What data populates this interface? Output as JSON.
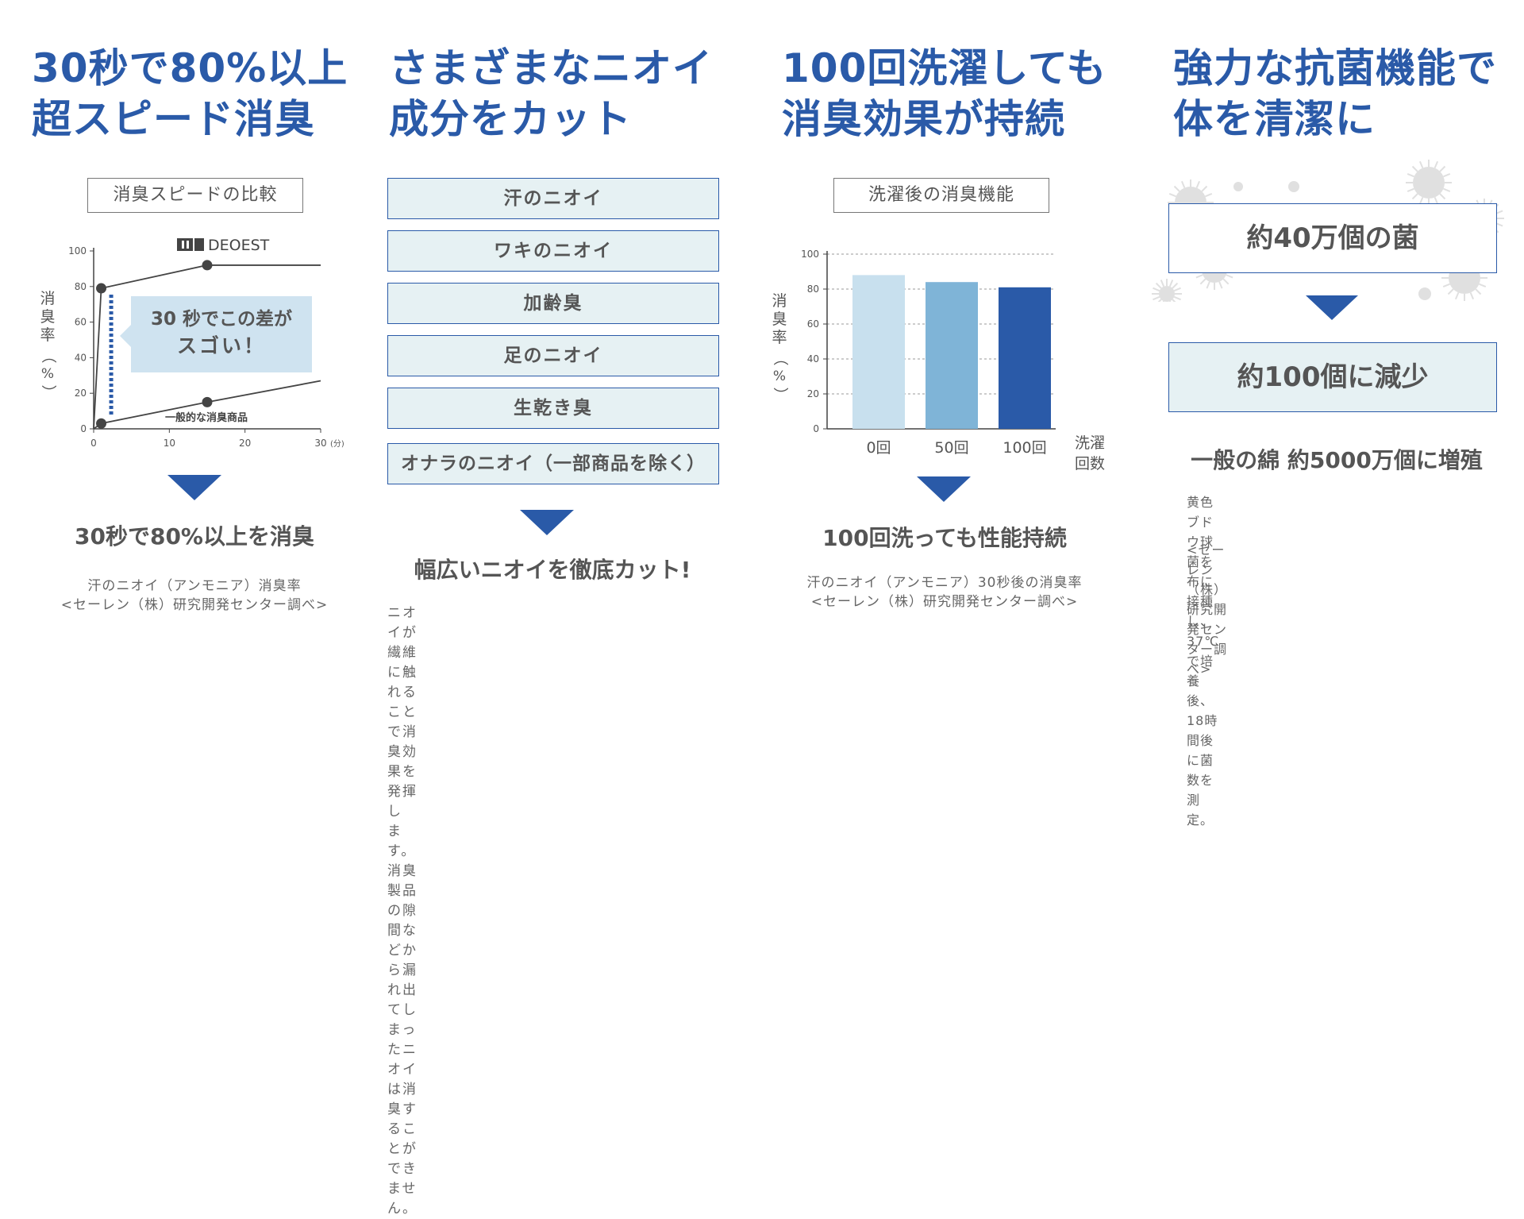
{
  "col1": {
    "headline": [
      "30秒で80%以上",
      "超スピード消臭"
    ],
    "chart_label": "消臭スピードの比較",
    "callout": [
      "30 秒でこの差が",
      "スゴい！"
    ],
    "subhead": "30秒で80%以上を消臭",
    "note": [
      "汗のニオイ（アンモニア）消臭率",
      "<セーレン（株）研究開発センター調べ>"
    ]
  },
  "col2": {
    "headline": [
      "さまざまなニオイ",
      "成分をカット"
    ],
    "odors": [
      "汗のニオイ",
      "ワキのニオイ",
      "加齢臭",
      "足のニオイ",
      "生乾き臭",
      "オナラのニオイ（一部商品を除く）"
    ],
    "subhead": "幅広いニオイを徹底カット!",
    "desc": [
      "ニオイが繊維に触れることで消臭効果を発揮し",
      "ます。消臭製品の隙間などから漏れ出てしまっ",
      "たニオイは消臭することができません。"
    ]
  },
  "col3": {
    "headline": [
      "100回洗濯しても",
      "消臭効果が持続"
    ],
    "chart_label": "洗濯後の消臭機能",
    "subhead": "100回洗っても性能持続",
    "note": [
      "汗のニオイ（アンモニア）30秒後の消臭率",
      "<セーレン（株）研究開発センター調べ>"
    ]
  },
  "col4": {
    "headline": [
      "強力な抗菌機能で",
      "体を清潔に"
    ],
    "box1": "約40万個の菌",
    "box2": "約100個に減少",
    "subhead": "一般の綿 約5000万個に増殖",
    "desc": [
      "黄色ブドウ球菌を布に接種し、37℃で培養後、",
      "18時間後に菌数を測定。"
    ],
    "note": "<セーレン（株）研究開発センター調べ>"
  },
  "chart_data": [
    {
      "type": "line",
      "x_unit": "(分)",
      "xlabel": "",
      "ylabel": "消臭率（%）",
      "xlim": [
        0,
        30
      ],
      "ylim": [
        0,
        100
      ],
      "xticks": [
        0,
        10,
        20,
        30
      ],
      "yticks": [
        0,
        20,
        40,
        60,
        80,
        100
      ],
      "series": [
        {
          "name": "DEOEST",
          "points": [
            [
              0,
              0
            ],
            [
              1,
              79
            ],
            [
              15,
              92
            ],
            [
              30,
              92
            ]
          ],
          "markers": [
            [
              1,
              79
            ],
            [
              15,
              92
            ]
          ],
          "color": "#444444"
        },
        {
          "name": "一般的な消臭商品",
          "points": [
            [
              0,
              0
            ],
            [
              1,
              3
            ],
            [
              15,
              15
            ],
            [
              30,
              27
            ]
          ],
          "markers": [
            [
              1,
              3
            ],
            [
              15,
              15
            ]
          ],
          "color": "#444444"
        }
      ],
      "highlight_x": 2,
      "highlight_color": "#2a5aa8",
      "callout_bg": "#cfe3f0"
    },
    {
      "type": "bar",
      "categories": [
        "0回",
        "50回",
        "100回"
      ],
      "values": [
        88,
        84,
        81
      ],
      "colors": [
        "#c8e0ee",
        "#7fb4d7",
        "#2a5aa8"
      ],
      "xlabel": "洗濯回数",
      "ylabel": "消臭率（%）",
      "ylim": [
        0,
        100
      ],
      "yticks": [
        0,
        20,
        40,
        60,
        80,
        100
      ],
      "grid": true
    }
  ]
}
